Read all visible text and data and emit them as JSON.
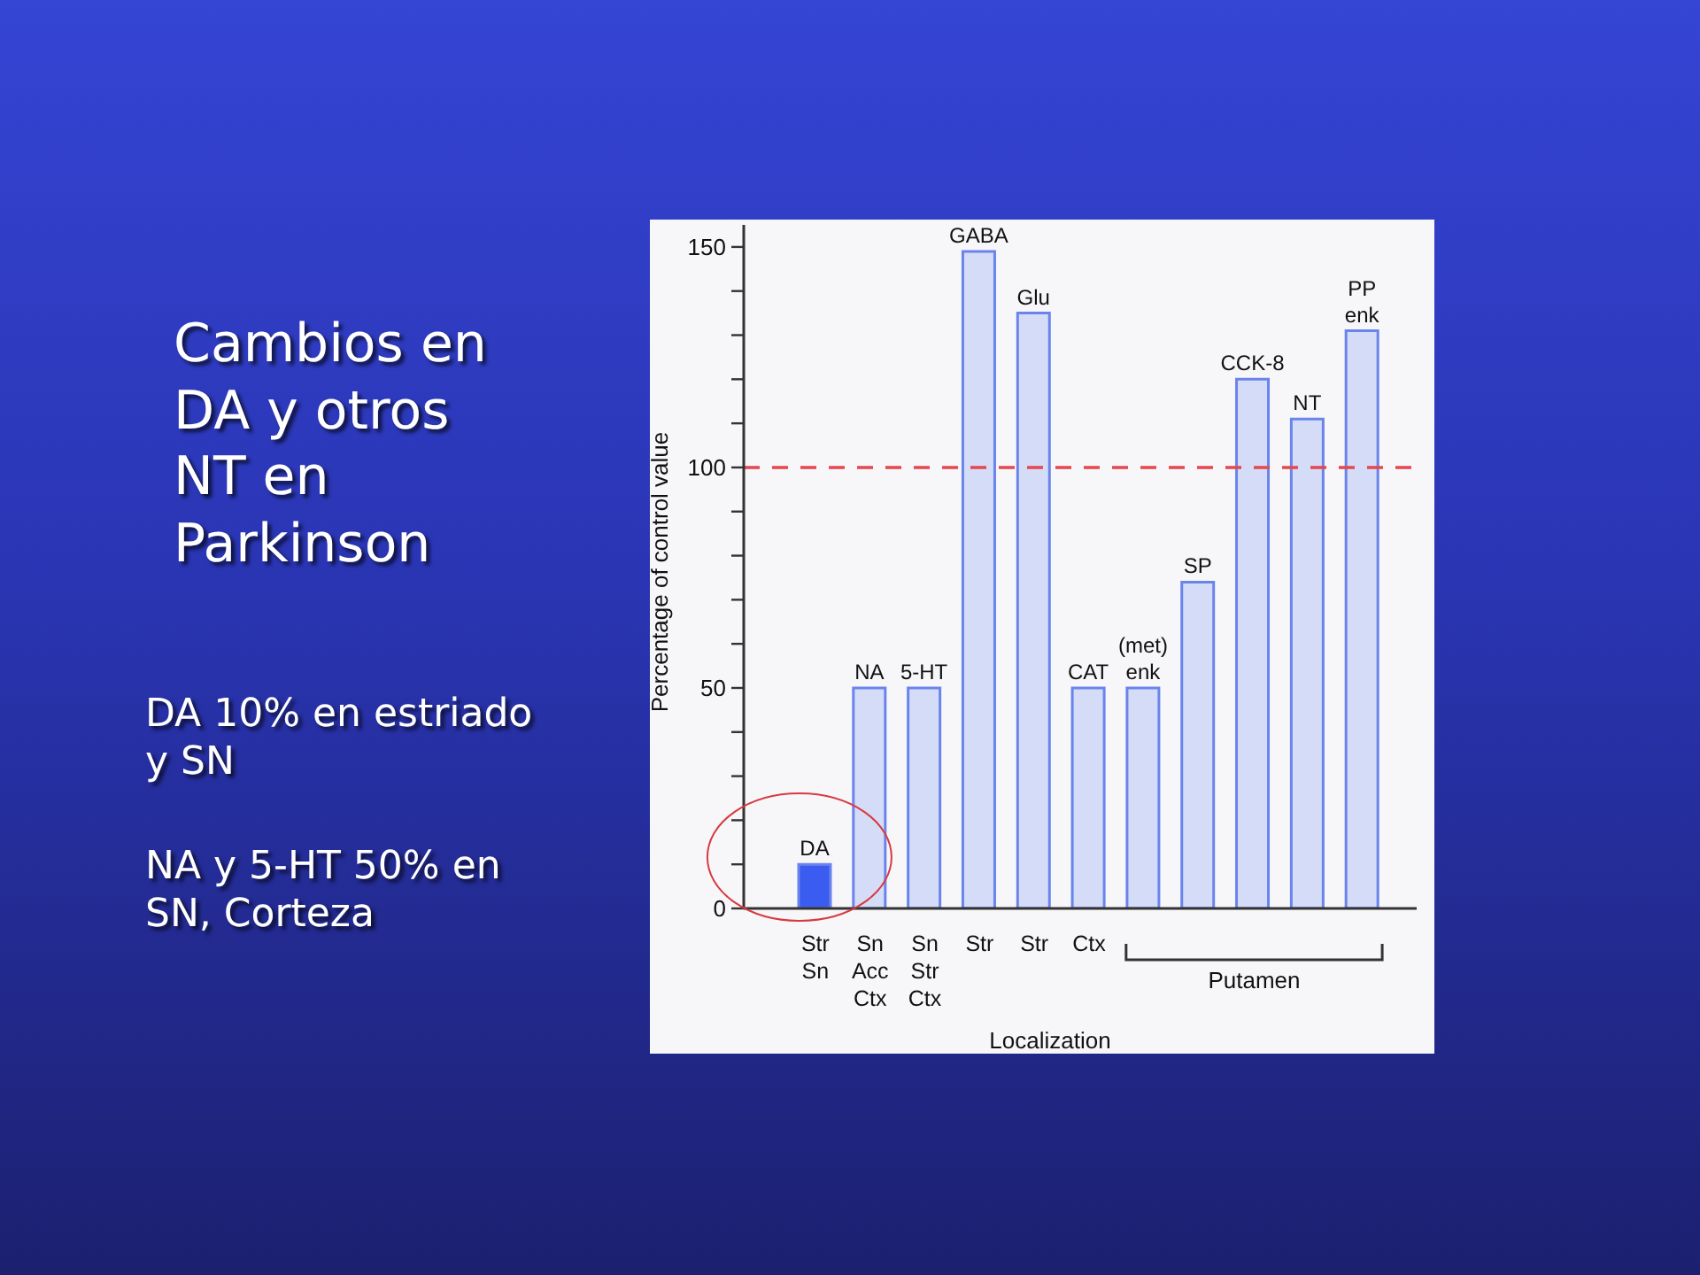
{
  "chart_data": {
    "type": "bar",
    "title": "Cambios en DA y otros NT en Parkinson",
    "annotations": [
      "DA 10% en estriado y SN",
      "NA y 5-HT 50% en SN, Corteza",
      "Putamen"
    ],
    "xlabel": "Localization",
    "ylabel": "Percentage of control value",
    "categories": [
      "Str Sn",
      "Sn Acc Ctx",
      "Sn Str Ctx",
      "Str",
      "Str",
      "Ctx",
      null,
      null,
      null,
      null,
      null
    ],
    "stacked": true,
    "series": [
      {
        "name": "DA",
        "color": "#3b5cf0",
        "values": [
          10,
          null,
          null,
          null,
          null,
          null,
          null,
          null,
          null,
          null,
          null
        ]
      },
      {
        "name": "NA",
        "color": "#d5dcf8",
        "values": [
          null,
          50,
          null,
          null,
          null,
          null,
          null,
          null,
          null,
          null,
          null
        ]
      },
      {
        "name": "5-HT",
        "color": "#d5dcf8",
        "values": [
          null,
          null,
          50,
          null,
          null,
          null,
          null,
          null,
          null,
          null,
          null
        ]
      },
      {
        "name": "GABA",
        "color": "#d5dcf8",
        "values": [
          null,
          null,
          null,
          149,
          null,
          null,
          null,
          null,
          null,
          null,
          null
        ]
      },
      {
        "name": "Glu",
        "color": "#d5dcf8",
        "values": [
          null,
          null,
          null,
          null,
          135,
          null,
          null,
          null,
          null,
          null,
          null
        ]
      },
      {
        "name": "CAT",
        "color": "#d5dcf8",
        "values": [
          null,
          null,
          null,
          null,
          null,
          50,
          null,
          null,
          null,
          null,
          null
        ]
      },
      {
        "name": "(met) enk",
        "color": "#d5dcf8",
        "values": [
          null,
          null,
          null,
          null,
          null,
          null,
          50,
          null,
          null,
          null,
          null
        ]
      },
      {
        "name": "SP",
        "color": "#d5dcf8",
        "values": [
          null,
          null,
          null,
          null,
          null,
          null,
          null,
          74,
          null,
          null,
          null
        ]
      },
      {
        "name": "CCK-8",
        "color": "#d5dcf8",
        "values": [
          null,
          null,
          null,
          null,
          null,
          null,
          null,
          null,
          120,
          null,
          null
        ]
      },
      {
        "name": "NT",
        "color": "#d5dcf8",
        "values": [
          null,
          null,
          null,
          null,
          null,
          null,
          null,
          null,
          null,
          111,
          null
        ]
      },
      {
        "name": "PP enk",
        "color": "#d5dcf8",
        "values": [
          null,
          null,
          null,
          null,
          null,
          null,
          null,
          null,
          null,
          null,
          131
        ]
      }
    ],
    "ylim": [
      0,
      155
    ],
    "yticks": [
      0,
      {
        "value": 10,
        "label": null
      },
      {
        "value": 20,
        "label": null
      },
      {
        "value": 30,
        "label": null
      },
      {
        "value": 40,
        "label": null
      },
      50,
      {
        "value": 60,
        "label": null
      },
      {
        "value": 70,
        "label": null
      },
      {
        "value": 80,
        "label": null
      },
      {
        "value": 90,
        "label": null
      },
      100,
      {
        "value": 110,
        "label": null
      },
      {
        "value": 120,
        "label": null
      },
      {
        "value": 130,
        "label": null
      },
      {
        "value": 140,
        "label": null
      },
      150
    ],
    "ref_lines": [
      {
        "axis": "y",
        "value": 100,
        "color": "#e5484f",
        "line_style": "dashed"
      }
    ]
  }
}
